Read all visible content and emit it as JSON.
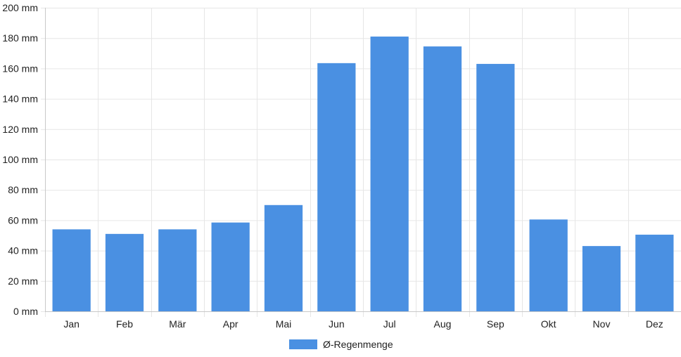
{
  "chart_data": {
    "type": "bar",
    "title": "",
    "xlabel": "",
    "ylabel": "",
    "categories": [
      "Jan",
      "Feb",
      "Mär",
      "Apr",
      "Mai",
      "Jun",
      "Jul",
      "Aug",
      "Sep",
      "Okt",
      "Nov",
      "Dez"
    ],
    "series": [
      {
        "name": "Ø-Regenmenge",
        "values": [
          54,
          51,
          54,
          58.5,
          70,
          163.5,
          181,
          174.5,
          163,
          60.5,
          43,
          50.5
        ],
        "color": "#4a90e2"
      }
    ],
    "ylim": [
      0,
      200
    ],
    "yticks": [
      0,
      20,
      40,
      60,
      80,
      100,
      120,
      140,
      160,
      180,
      200
    ],
    "ytick_labels": [
      "0 mm",
      "20 mm",
      "40 mm",
      "60 mm",
      "80 mm",
      "100 mm",
      "120 mm",
      "140 mm",
      "160 mm",
      "180 mm",
      "200 mm"
    ],
    "grid": true,
    "legend_position": "bottom-center"
  },
  "colors": {
    "bar": "#4a90e2",
    "grid": "#e6e6e6",
    "axis": "#c8c8c8",
    "text": "#222222"
  }
}
